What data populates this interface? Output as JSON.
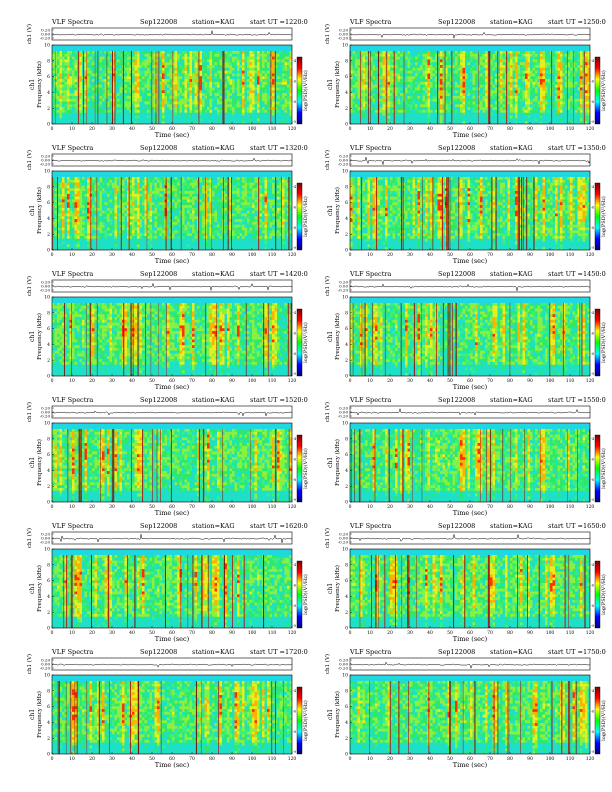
{
  "chart_data": {
    "type": "heatmap",
    "common": {
      "header_title": "VLF Spectra",
      "date": "Sep122008",
      "station": "station=KAG",
      "start_prefix": "start  UT  =",
      "ch_label": "ch1 (V)",
      "ch_ticks": [
        "0.20",
        "0.00",
        "-0.20"
      ],
      "freq_label_top": "ch1",
      "freq_label": "Frequency  (kHz)",
      "freq_ticks": [
        "0",
        "2",
        "4",
        "6",
        "8",
        "10"
      ],
      "freq_range": [
        0,
        10
      ],
      "time_label": "Time  (sec)",
      "time_ticks": [
        "0",
        "10",
        "20",
        "30",
        "40",
        "50",
        "60",
        "70",
        "80",
        "90",
        "100",
        "110",
        "120"
      ],
      "time_range": [
        0,
        120
      ],
      "colorbar_label": "log(PSD)(V²/Hz)",
      "colorbar_ticks": [
        "-4",
        "-6",
        "-8",
        "-9"
      ],
      "colormap": [
        "#000080",
        "#0000ff",
        "#00ffff",
        "#00ff00",
        "#ffff00",
        "#ff0000",
        "#800000"
      ]
    },
    "panels": [
      {
        "start_ut": "1220:0"
      },
      {
        "start_ut": "1250:0"
      },
      {
        "start_ut": "1320:0"
      },
      {
        "start_ut": "1350:0"
      },
      {
        "start_ut": "1420:0"
      },
      {
        "start_ut": "1450:0"
      },
      {
        "start_ut": "1520:0"
      },
      {
        "start_ut": "1550:0"
      },
      {
        "start_ut": "1620:0"
      },
      {
        "start_ut": "1650:0"
      },
      {
        "start_ut": "1720:0"
      },
      {
        "start_ut": "1750:0"
      }
    ]
  }
}
